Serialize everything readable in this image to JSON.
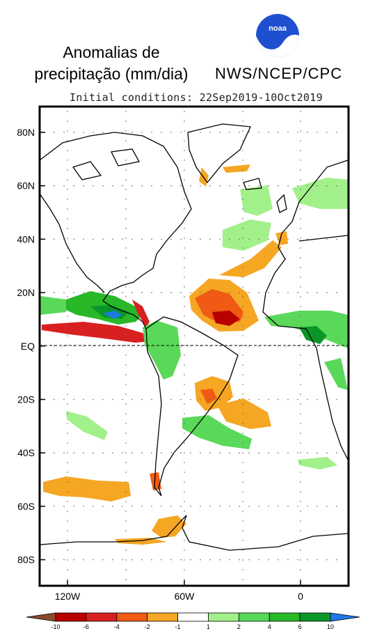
{
  "title_line1": "Anomalias de",
  "title_line2": "precipitação (mm/dia)",
  "org_label": "NWS/NCEP/CPC",
  "logo_text": "noaa",
  "initial_conditions": "Initial conditions: 22Sep2019-10Oct2019",
  "lat_labels": [
    "80N",
    "60N",
    "40N",
    "20N",
    "EQ",
    "20S",
    "40S",
    "60S",
    "80S"
  ],
  "lon_labels": [
    "120W",
    "60W",
    "0"
  ],
  "colorbar": {
    "ticks": [
      "-10",
      "-6",
      "-4",
      "-2",
      "-1",
      "1",
      "2",
      "4",
      "6",
      "10"
    ],
    "colors": [
      "#8b4a2b",
      "#b80000",
      "#d82020",
      "#f05a14",
      "#f5a623",
      "#ffffff",
      "#a2f08a",
      "#5ad85a",
      "#28b828",
      "#0a9628",
      "#1e78e6"
    ]
  }
}
